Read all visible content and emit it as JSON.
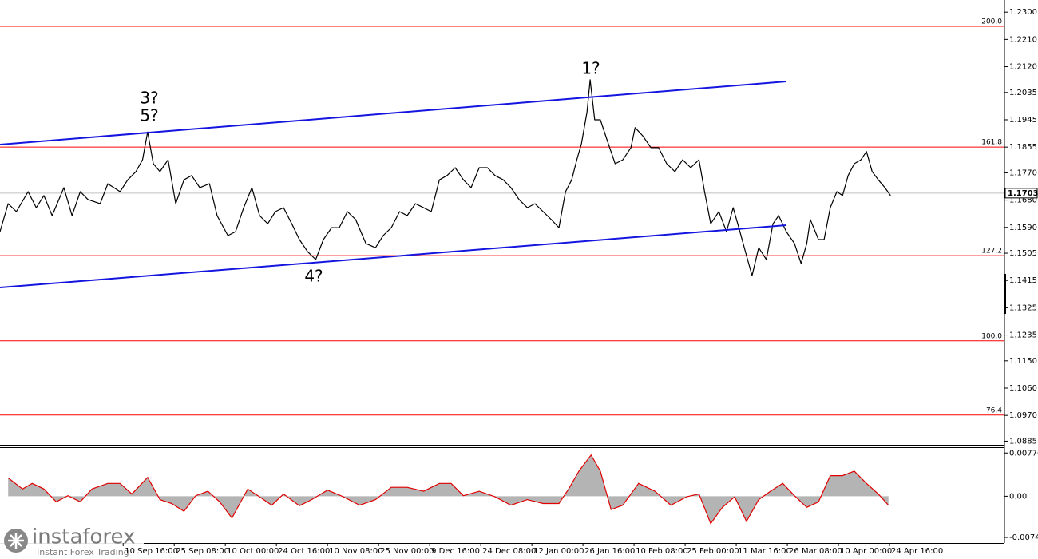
{
  "chart_data": [
    {
      "type": "line",
      "x": [
        -2.41,
        -2.25,
        -2.09,
        -1.86,
        -1.7,
        -1.55,
        -1.39,
        -1.16,
        -1.0,
        -0.84,
        -0.69,
        -0.45,
        -0.3,
        -0.06,
        0.09,
        0.25,
        0.38,
        0.48,
        0.59,
        0.72,
        0.88,
        1.03,
        1.19,
        1.34,
        1.5,
        1.69,
        1.84,
        2.05,
        2.2,
        2.36,
        2.52,
        2.67,
        2.83,
        2.98,
        3.14,
        3.3,
        3.45,
        3.61,
        3.77,
        3.92,
        4.08,
        4.23,
        4.39,
        4.55,
        4.75,
        4.94,
        5.09,
        5.25,
        5.41,
        5.56,
        5.72,
        5.88,
        6.03,
        6.19,
        6.34,
        6.5,
        6.66,
        6.81,
        6.97,
        7.13,
        7.28,
        7.44,
        7.59,
        7.75,
        7.91,
        8.06,
        8.22,
        8.38,
        8.53,
        8.66,
        8.78,
        8.88,
        8.97,
        9.08,
        9.14,
        9.23,
        9.34,
        9.47,
        9.63,
        9.78,
        9.94,
        10.02,
        10.17,
        10.33,
        10.48,
        10.64,
        10.8,
        10.95,
        11.11,
        11.27,
        11.38,
        11.5,
        11.66,
        11.81,
        11.94,
        12.05,
        12.2,
        12.31,
        12.44,
        12.59,
        12.72,
        12.83,
        12.98,
        13.14,
        13.27,
        13.38,
        13.45,
        13.61,
        13.72,
        13.84,
        13.97,
        14.08,
        14.19,
        14.31,
        14.44,
        14.55,
        14.66,
        14.78,
        14.91,
        15.02
      ],
      "series": [
        {
          "color": "#000000",
          "values": [
            1.1576,
            1.1668,
            1.1642,
            1.1708,
            1.1655,
            1.1695,
            1.1629,
            1.1721,
            1.1629,
            1.1708,
            1.1682,
            1.1668,
            1.1734,
            1.1708,
            1.1747,
            1.1774,
            1.1813,
            1.1905,
            1.18,
            1.1774,
            1.1813,
            1.1668,
            1.1747,
            1.1761,
            1.1721,
            1.1734,
            1.1629,
            1.1563,
            1.1576,
            1.1655,
            1.1721,
            1.1629,
            1.1602,
            1.1642,
            1.1655,
            1.1602,
            1.155,
            1.151,
            1.1484,
            1.155,
            1.1589,
            1.1589,
            1.1642,
            1.1616,
            1.1537,
            1.1523,
            1.1563,
            1.1589,
            1.1642,
            1.1629,
            1.1668,
            1.1655,
            1.1642,
            1.1747,
            1.1761,
            1.1787,
            1.1747,
            1.1721,
            1.1787,
            1.1787,
            1.1761,
            1.1747,
            1.1721,
            1.1682,
            1.1655,
            1.1668,
            1.1642,
            1.1616,
            1.1589,
            1.1708,
            1.1747,
            1.1813,
            1.1866,
            1.1971,
            1.2077,
            1.1945,
            1.1945,
            1.1879,
            1.18,
            1.1813,
            1.1853,
            1.1919,
            1.1892,
            1.1853,
            1.1853,
            1.18,
            1.1774,
            1.1813,
            1.1787,
            1.1813,
            1.1708,
            1.1602,
            1.1642,
            1.1576,
            1.1655,
            1.1589,
            1.1497,
            1.1431,
            1.1523,
            1.1484,
            1.1602,
            1.1629,
            1.1576,
            1.1537,
            1.1471,
            1.1537,
            1.1616,
            1.155,
            1.155,
            1.1655,
            1.1708,
            1.1695,
            1.1761,
            1.18,
            1.1813,
            1.184,
            1.1774,
            1.1747,
            1.1721,
            1.1695
          ]
        }
      ],
      "xlim": [
        -2.41,
        17.25
      ],
      "xticks": [
        {
          "value": 0,
          "label": "10 Sep 16:00"
        },
        {
          "value": 1,
          "label": "25 Sep 08:00"
        },
        {
          "value": 2,
          "label": "10 Oct 00:00"
        },
        {
          "value": 3,
          "label": "24 Oct 16:00"
        },
        {
          "value": 4,
          "label": "10 Nov 08:00"
        },
        {
          "value": 5,
          "label": "25 Nov 00:00"
        },
        {
          "value": 6,
          "label": "9 Dec 16:00"
        },
        {
          "value": 7,
          "label": "24 Dec 08:00"
        },
        {
          "value": 8,
          "label": "12 Jan 00:00"
        },
        {
          "value": 9,
          "label": "26 Jan 16:00"
        },
        {
          "value": 10,
          "label": "10 Feb 08:00"
        },
        {
          "value": 11,
          "label": "25 Feb 00:00"
        },
        {
          "value": 12,
          "label": "11 Mar 16:00"
        },
        {
          "value": 13,
          "label": "26 Mar 08:00"
        },
        {
          "value": 14,
          "label": "10 Apr 00:00"
        },
        {
          "value": 15,
          "label": "24 Apr 16:00"
        }
      ],
      "ylim": [
        1.0873,
        1.234
      ],
      "yticks": [
        {
          "value": 1.23,
          "label": "1.2300"
        },
        {
          "value": 1.221,
          "label": "1.2210"
        },
        {
          "value": 1.212,
          "label": "1.2120"
        },
        1.2035,
        1.1945,
        1.1855,
        {
          "value": 1.177,
          "label": "1.1770"
        },
        {
          "value": 1.168,
          "label": "1.1680"
        },
        {
          "value": 1.159,
          "label": "1.1590"
        },
        1.1505,
        1.1415,
        1.1325,
        1.1235,
        {
          "value": 1.115,
          "label": "1.1150"
        },
        {
          "value": 1.106,
          "label": "1.1060"
        },
        {
          "value": 1.097,
          "label": "1.0970"
        },
        1.0885
      ],
      "levels": [
        {
          "value": 1.2253,
          "label": "200.0"
        },
        {
          "value": 1.1855,
          "label": "161.8"
        },
        {
          "value": 1.1497,
          "label": "127.2"
        },
        {
          "value": 1.1216,
          "label": "100.0"
        },
        {
          "value": 1.0971,
          "label": "76.4"
        }
      ],
      "level_color": "#ff0000",
      "last_price": 1.1703,
      "last_price_color": "#c0c0c0",
      "trendline_color": "#1515e0",
      "annotations": [
        {
          "text": "3?",
          "color": "#e00000"
        },
        {
          "text": "5?",
          "color": "#1515e0"
        },
        {
          "text": "1?",
          "color": "#1515e0"
        },
        {
          "text": "4?",
          "color": "#e00000"
        }
      ]
    },
    {
      "type": "oscillator",
      "x": [
        -2.25,
        -1.97,
        -1.78,
        -1.55,
        -1.31,
        -1.08,
        -0.84,
        -0.61,
        -0.3,
        -0.06,
        0.17,
        0.48,
        0.72,
        0.95,
        1.19,
        1.42,
        1.66,
        1.89,
        2.13,
        2.44,
        2.67,
        2.91,
        3.14,
        3.45,
        3.69,
        4.0,
        4.31,
        4.63,
        4.94,
        5.25,
        5.56,
        5.88,
        6.19,
        6.42,
        6.66,
        6.97,
        7.28,
        7.59,
        7.91,
        8.22,
        8.53,
        8.72,
        8.92,
        9.16,
        9.34,
        9.55,
        9.78,
        10.09,
        10.41,
        10.72,
        11.03,
        11.27,
        11.5,
        11.73,
        11.97,
        12.2,
        12.44,
        12.67,
        12.91,
        13.14,
        13.38,
        13.61,
        13.84,
        14.08,
        14.31,
        14.55,
        14.78,
        14.98
      ],
      "series": [
        {
          "kind": "area",
          "color": "#b4b4b4",
          "values": [
            0.0033,
            0.0013,
            0.0023,
            0.0013,
            -0.001,
            0.0001,
            -0.001,
            0.0013,
            0.0023,
            0.0023,
            0.0004,
            0.0034,
            -0.0006,
            -0.0013,
            -0.0027,
            0.0001,
            0.0009,
            -0.001,
            -0.0039,
            0.0013,
            -0.0001,
            -0.0016,
            0.0004,
            -0.0017,
            -0.0006,
            0.0011,
            -0.0001,
            -0.0016,
            -0.0006,
            0.0016,
            0.0016,
            0.0009,
            0.0023,
            0.0023,
            0.0001,
            0.0009,
            -0.0001,
            -0.0016,
            -0.0006,
            -0.0013,
            -0.0013,
            0.0013,
            0.0045,
            0.0074,
            0.0045,
            -0.0024,
            -0.0016,
            0.0023,
            0.0009,
            -0.0016,
            -0.0001,
            0.0004,
            -0.0049,
            -0.002,
            -0.0001,
            -0.0045,
            -0.0006,
            0.0009,
            0.0023,
            0.0001,
            -0.002,
            -0.001,
            0.0037,
            0.0037,
            0.0045,
            0.0023,
            0.0004,
            -0.0016
          ]
        },
        {
          "kind": "line",
          "color": "#e00000",
          "values": [
            0.0033,
            0.0013,
            0.0023,
            0.0013,
            -0.001,
            0.0001,
            -0.001,
            0.0013,
            0.0023,
            0.0023,
            0.0004,
            0.0034,
            -0.0006,
            -0.0013,
            -0.0027,
            0.0001,
            0.0009,
            -0.001,
            -0.0039,
            0.0013,
            -0.0001,
            -0.0016,
            0.0004,
            -0.0017,
            -0.0006,
            0.0011,
            -0.0001,
            -0.0016,
            -0.0006,
            0.0016,
            0.0016,
            0.0009,
            0.0023,
            0.0023,
            0.0001,
            0.0009,
            -0.0001,
            -0.0016,
            -0.0006,
            -0.0013,
            -0.0013,
            0.0013,
            0.0045,
            0.0074,
            0.0045,
            -0.0024,
            -0.0016,
            0.0023,
            0.0009,
            -0.0016,
            -0.0001,
            0.0004,
            -0.0049,
            -0.002,
            -0.0001,
            -0.0045,
            -0.0006,
            0.0009,
            0.0023,
            0.0001,
            -0.002,
            -0.001,
            0.0037,
            0.0037,
            0.0045,
            0.0023,
            0.0004,
            -0.0016
          ]
        }
      ],
      "xlim": [
        -2.41,
        17.25
      ],
      "ylim": [
        -0.0084,
        0.0088
      ],
      "yticks": [
        -0.0074,
        {
          "value": 0,
          "label": "0.00"
        },
        0.00776
      ]
    }
  ],
  "watermark": {
    "brand": "instaforex",
    "tagline": "Instant Forex Trading"
  }
}
